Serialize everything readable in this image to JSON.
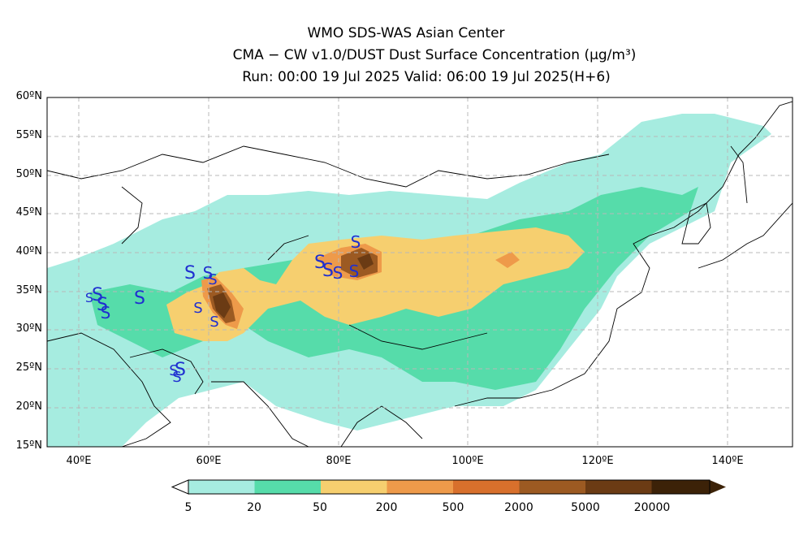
{
  "header": {
    "center": "WMO SDS-WAS Asian Center",
    "product": "CMA − CW v1.0/DUST Dust Surface Concentration (μg/m³)",
    "run_valid": "Run: 00:00 19 Jul 2025    Valid: 06:00 19 Jul 2025(H+6)"
  },
  "map": {
    "lat_labels": [
      "60ºN",
      "55ºN",
      "50ºN",
      "45ºN",
      "40ºN",
      "35ºN",
      "30ºN",
      "25ºN",
      "20ºN",
      "15ºN"
    ],
    "lon_labels": [
      "40ºE",
      "60ºE",
      "80ºE",
      "100ºE",
      "120ºE",
      "140ºE"
    ],
    "lon_range": [
      35,
      150
    ],
    "lat_range": [
      15,
      60
    ],
    "grid": true,
    "station_symbol": "S",
    "station_color": "#1f2fd0"
  },
  "colorbar": {
    "levels": [
      "5",
      "20",
      "50",
      "200",
      "500",
      "2000",
      "5000",
      "20000"
    ],
    "colors": [
      "#a6ece0",
      "#56dcaa",
      "#f6cf6f",
      "#ee9a4a",
      "#d8702c",
      "#9c5a22",
      "#6b3b14",
      "#3c2208"
    ]
  }
}
